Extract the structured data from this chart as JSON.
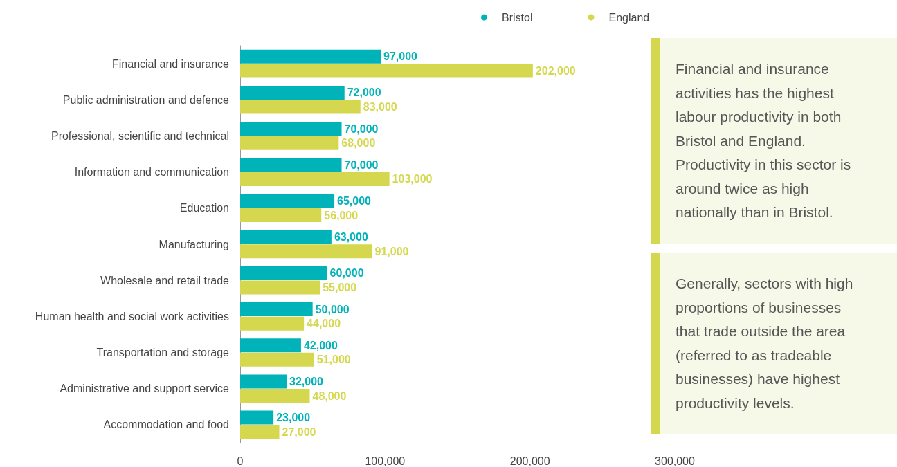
{
  "chart_data": {
    "type": "bar",
    "orientation": "horizontal",
    "categories": [
      "Financial and insurance",
      "Public administration and defence",
      "Professional, scientific and technical",
      "Information and communication",
      "Education",
      "Manufacturing",
      "Wholesale and retail trade",
      "Human health and social work activities",
      "Transportation and storage",
      "Administrative and support service",
      "Accommodation and food"
    ],
    "series": [
      {
        "name": "Bristol",
        "color": "#00b3b8",
        "values": [
          97000,
          72000,
          70000,
          70000,
          65000,
          63000,
          60000,
          50000,
          42000,
          32000,
          23000
        ],
        "value_labels": [
          "97,000",
          "72,000",
          "70,000",
          "70,000",
          "65,000",
          "63,000",
          "60,000",
          "50,000",
          "42,000",
          "32,000",
          "23,000"
        ]
      },
      {
        "name": "England",
        "color": "#d5d84e",
        "values": [
          202000,
          83000,
          68000,
          103000,
          56000,
          91000,
          55000,
          44000,
          51000,
          48000,
          27000
        ],
        "value_labels": [
          "202,000",
          "83,000",
          "68,000",
          "103,000",
          "56,000",
          "91,000",
          "55,000",
          "44,000",
          "51,000",
          "48,000",
          "27,000"
        ]
      }
    ],
    "xlim": [
      0,
      300000
    ],
    "xticks": [
      0,
      {
        "value": 100000,
        "label": "100,000"
      },
      {
        "value": 200000,
        "label": "200,000"
      },
      {
        "value": 300000,
        "label": "300,000"
      }
    ],
    "grid": false,
    "legend": "top",
    "annotations": [
      "Financial and insurance activities has the highest labour productivity in both Bristol and England. Productivity in this sector is around twice as high nationally than in Bristol.",
      "Generally, sectors with high proportions of businesses that trade outside the area (referred to as tradeable businesses) have highest productivity levels."
    ]
  }
}
